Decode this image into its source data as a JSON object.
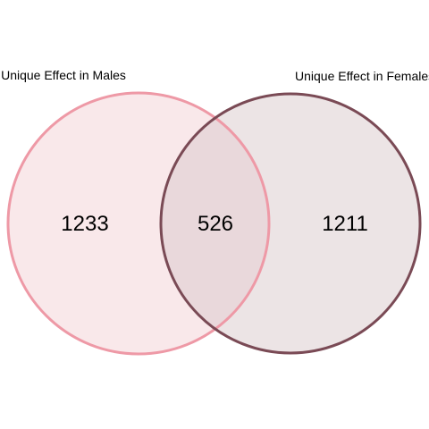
{
  "venn": {
    "sets": [
      {
        "key": "males",
        "label": "Unique Effect in Males",
        "count": "1233",
        "stroke": "#ee99a6",
        "fill": "#f9e8ea"
      },
      {
        "key": "females",
        "label": "Unique Effect in Females",
        "count": "1211",
        "stroke": "#7a4a55",
        "fill": "#ece4e5"
      }
    ],
    "intersection": {
      "count": "526",
      "fill": "#e9d8db"
    }
  }
}
